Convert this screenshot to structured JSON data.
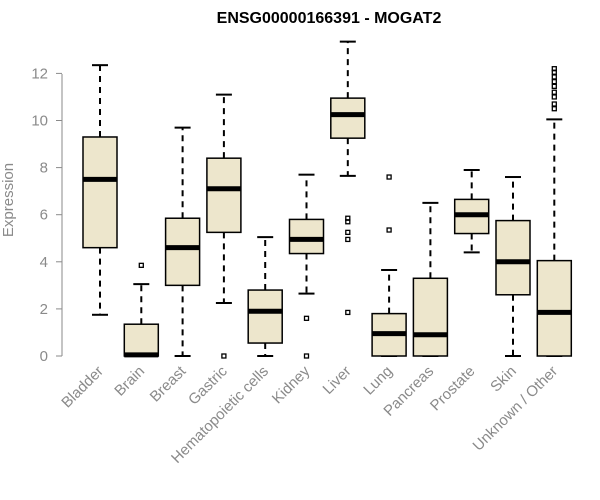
{
  "chart_data": {
    "type": "boxplot",
    "title": "ENSG00000166391 - MOGAT2",
    "xlabel": "",
    "ylabel": "Expression",
    "ylim": [
      0,
      13.4
    ],
    "yticks": [
      "0",
      "2",
      "4",
      "6",
      "8",
      "10",
      "12"
    ],
    "box_color": "#ede6cc",
    "categories": [
      "Bladder",
      "Brain",
      "Breast",
      "Gastric",
      "Hematopoietic cells",
      "Kidney",
      "Liver",
      "Lung",
      "Pancreas",
      "Prostate",
      "Skin",
      "Unknown / Other"
    ],
    "boxes": [
      {
        "min": 1.75,
        "q1": 4.6,
        "median": 7.5,
        "q3": 9.3,
        "max": 12.35,
        "outliers": []
      },
      {
        "min": 0.0,
        "q1": 0.0,
        "median": 0.05,
        "q3": 1.35,
        "max": 3.05,
        "outliers": [
          3.85
        ]
      },
      {
        "min": 0.0,
        "q1": 3.0,
        "median": 4.6,
        "q3": 5.85,
        "max": 9.7,
        "outliers": []
      },
      {
        "min": 2.25,
        "q1": 5.25,
        "median": 7.1,
        "q3": 8.4,
        "max": 11.1,
        "outliers": [
          0.0
        ]
      },
      {
        "min": 0.0,
        "q1": 0.55,
        "median": 1.9,
        "q3": 2.8,
        "max": 5.05,
        "outliers": []
      },
      {
        "min": 2.65,
        "q1": 4.35,
        "median": 4.95,
        "q3": 5.8,
        "max": 7.7,
        "outliers": [
          1.6,
          0.0
        ]
      },
      {
        "min": 7.65,
        "q1": 9.25,
        "median": 10.25,
        "q3": 10.95,
        "max": 13.35,
        "outliers": [
          5.85,
          5.7,
          5.25,
          4.95,
          1.85
        ]
      },
      {
        "min": 0.0,
        "q1": 0.0,
        "median": 0.95,
        "q3": 1.8,
        "max": 3.65,
        "outliers": [
          7.6,
          5.35
        ]
      },
      {
        "min": 0.0,
        "q1": 0.0,
        "median": 0.9,
        "q3": 3.3,
        "max": 6.5,
        "outliers": []
      },
      {
        "min": 4.4,
        "q1": 5.2,
        "median": 6.0,
        "q3": 6.65,
        "max": 7.9,
        "outliers": []
      },
      {
        "min": 0.0,
        "q1": 2.6,
        "median": 4.0,
        "q3": 5.75,
        "max": 7.6,
        "outliers": []
      },
      {
        "min": 0.0,
        "q1": 0.0,
        "median": 1.85,
        "q3": 4.05,
        "max": 10.05,
        "outliers": [
          10.5,
          10.7,
          11.0,
          11.2,
          11.45,
          11.65,
          11.85,
          12.05,
          12.2
        ]
      }
    ]
  }
}
